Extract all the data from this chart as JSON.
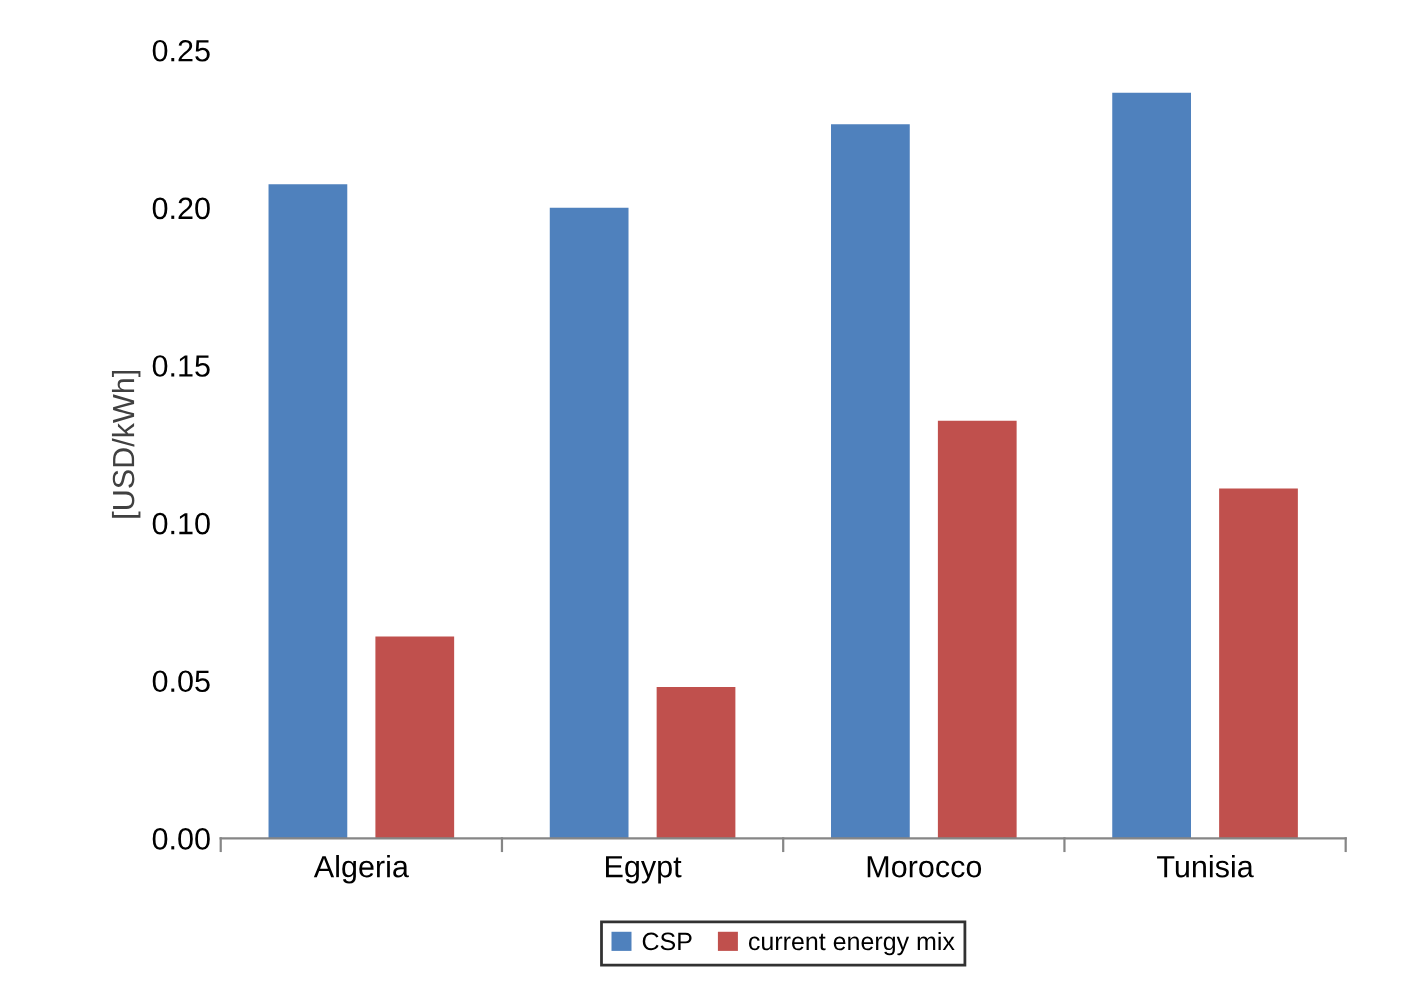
{
  "chart_data": {
    "type": "bar",
    "ylabel": "[USD/kWh]",
    "categories": [
      "Algeria",
      "Egypt",
      "Morocco",
      "Tunisia"
    ],
    "series": [
      {
        "name": "CSP",
        "color": "#4f81bd",
        "values": [
          0.2075,
          0.2,
          0.2265,
          0.2365
        ]
      },
      {
        "name": "current energy mix",
        "color": "#c0504d",
        "values": [
          0.064,
          0.048,
          0.1325,
          0.111
        ]
      }
    ],
    "ylim": [
      0,
      0.25
    ],
    "yticks": [
      {
        "value": 0,
        "label": "0.00"
      },
      {
        "value": 0.05,
        "label": "0.05"
      },
      {
        "value": 0.1,
        "label": "0.10"
      },
      {
        "value": 0.15,
        "label": "0.15"
      },
      {
        "value": 0.2,
        "label": "0.20"
      },
      {
        "value": 0.25,
        "label": "0.25"
      }
    ],
    "grid": false,
    "legend": "bottom"
  }
}
